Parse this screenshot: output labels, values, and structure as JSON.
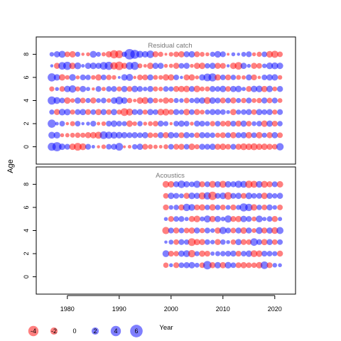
{
  "chart_data": {
    "type": "scatter",
    "xlabel": "Year",
    "ylabel": "Age",
    "xlim": [
      1974,
      2024
    ],
    "x_ticks": [
      1980,
      1990,
      2000,
      2010,
      2020
    ],
    "y_ticks": [
      0,
      2,
      4,
      6,
      8
    ],
    "ylim": [
      -1.5,
      9.5
    ],
    "colors": {
      "positive": "#0000ff",
      "negative": "#ff0000",
      "frame": "#000000",
      "title": "#777777"
    },
    "legend": {
      "placement": "bottom-left",
      "items": [
        {
          "label": "-4",
          "value": -4
        },
        {
          "label": "-2",
          "value": -2
        },
        {
          "label": "0",
          "value": 0
        },
        {
          "label": "2",
          "value": 2
        },
        {
          "label": "4",
          "value": 4
        },
        {
          "label": "6",
          "value": 6
        }
      ]
    },
    "panels": [
      {
        "title": "Residual catch",
        "years": [
          1977,
          2021
        ],
        "ages": [
          0,
          8
        ],
        "residuals_by_age": {
          "8": [
            0.8,
            1.5,
            1.9,
            -1.2,
            -1.6,
            1.0,
            -0.4,
            -0.6,
            1.8,
            0.9,
            -0.7,
            -1.5,
            -2.6,
            -2.4,
            1.1,
            4.2,
            3.1,
            1.9,
            1.6,
            2.2,
            -1.4,
            -1.0,
            -0.3,
            -0.8,
            -1.2,
            -1.5,
            1.4,
            1.6,
            -1.3,
            -0.9,
            -0.6,
            1.0,
            1.7,
            1.3,
            -0.3,
            0.6,
            0.4,
            0.9,
            1.3,
            -0.6,
            -1.0,
            1.2,
            -1.7,
            -2.0,
            -1.2
          ],
          "7": [
            0.4,
            -1.4,
            2.2,
            2.6,
            -1.6,
            1.8,
            0.5,
            1.5,
            1.7,
            1.4,
            2.3,
            2.6,
            -2.1,
            -2.8,
            -1.4,
            2.2,
            2.5,
            -0.9,
            -0.5,
            -1.6,
            1.5,
            1.4,
            -0.6,
            -0.7,
            -1.4,
            1.2,
            1.4,
            -0.6,
            -1.5,
            -1.6,
            1.1,
            1.5,
            -1.4,
            -1.3,
            0.4,
            -1.6,
            -2.2,
            1.5,
            0.6,
            -1.4,
            -1.2,
            0.8,
            1.7,
            1.8,
            1.6
          ],
          "6": [
            2.6,
            1.6,
            -1.6,
            -0.8,
            1.7,
            -0.6,
            1.3,
            1.1,
            -0.8,
            -1.5,
            1.2,
            -1.1,
            -0.8,
            0.3,
            1.6,
            1.9,
            -0.4,
            -1.2,
            -1.3,
            1.4,
            -0.9,
            -0.8,
            -1.6,
            -1.5,
            1.2,
            0.4,
            -1.4,
            -1.5,
            -0.6,
            1.5,
            2.3,
            2.5,
            -1.5,
            1.2,
            -1.3,
            1.1,
            -0.9,
            -0.7,
            1.4,
            -1.3,
            -0.4,
            1.2,
            1.5,
            1.6,
            -0.8
          ],
          "5": [
            -1.0,
            0.6,
            -1.2,
            1.6,
            2.1,
            -1.0,
            1.5,
            0.7,
            -0.4,
            1.3,
            -0.7,
            1.2,
            1.3,
            -1.0,
            1.5,
            -1.2,
            1.6,
            1.3,
            0.8,
            1.4,
            -1.0,
            -0.8,
            1.2,
            1.0,
            -1.4,
            -1.5,
            -1.6,
            1.3,
            -1.7,
            -0.9,
            -1.0,
            1.4,
            1.2,
            1.6,
            -1.2,
            1.5,
            1.6,
            0.7,
            -1.3,
            1.6,
            1.7,
            -1.5,
            1.6,
            -0.9,
            1.4
          ],
          "4": [
            2.6,
            1.8,
            1.2,
            -1.6,
            -0.8,
            1.5,
            -1.2,
            1.0,
            -1.4,
            0.9,
            1.2,
            -0.8,
            1.6,
            2.3,
            1.6,
            -1.1,
            -0.5,
            -1.6,
            -1.8,
            1.4,
            -1.1,
            -0.7,
            -1.5,
            -1.0,
            1.0,
            0.8,
            -1.2,
            1.0,
            1.4,
            1.5,
            -1.8,
            1.6,
            1.3,
            -1.3,
            1.2,
            -1.4,
            1.0,
            -1.1,
            1.3,
            -0.9,
            -1.1,
            1.4,
            -1.2,
            1.3,
            -0.9
          ],
          "3": [
            1.0,
            -1.4,
            1.7,
            1.6,
            -1.0,
            1.3,
            1.5,
            -1.3,
            1.2,
            -1.5,
            1.4,
            -1.2,
            1.5,
            -1.0,
            -2.3,
            -1.9,
            1.3,
            1.4,
            -1.0,
            1.5,
            1.2,
            -1.7,
            -1.8,
            -1.2,
            1.4,
            1.0,
            -1.6,
            1.2,
            -1.4,
            -0.9,
            1.0,
            1.4,
            1.3,
            1.2,
            0.6,
            -1.5,
            1.0,
            1.2,
            1.4,
            -1.2,
            1.5,
            1.2,
            1.4,
            -1.0,
            1.3
          ],
          "2": [
            2.6,
            0.5,
            1.2,
            -0.4,
            -1.0,
            1.2,
            0.4,
            0.6,
            1.3,
            -0.5,
            -0.8,
            1.3,
            1.6,
            1.2,
            1.0,
            -1.6,
            -0.8,
            1.1,
            -0.6,
            -0.9,
            -1.2,
            1.4,
            1.0,
            -0.4,
            1.2,
            1.5,
            1.2,
            -0.6,
            1.4,
            1.3,
            1.0,
            -1.1,
            1.2,
            -1.2,
            -1.4,
            1.3,
            -1.4,
            1.5,
            -1.2,
            0.9,
            1.2,
            -1.6,
            1.5,
            -1.3,
            1.1
          ],
          "1": [
            1.8,
            1.7,
            -0.6,
            -0.7,
            -0.9,
            -1.1,
            -1.0,
            -1.4,
            -1.6,
            -1.9,
            2.3,
            2.0,
            1.8,
            1.7,
            1.5,
            1.3,
            1.4,
            1.2,
            1.5,
            -1.2,
            -1.0,
            1.4,
            -1.4,
            1.6,
            1.2,
            -1.3,
            1.5,
            1.0,
            -1.2,
            1.4,
            1.3,
            1.1,
            -1.0,
            -1.3,
            1.2,
            -1.5,
            1.3,
            1.5,
            -1.6,
            1.2,
            -1.6,
            1.0,
            -1.4,
            1.5,
            -1.2
          ],
          "0": [
            2.5,
            3.2,
            1.6,
            1.3,
            -1.6,
            -2.3,
            -1.8,
            1.3,
            0.5,
            -0.4,
            -0.8,
            1.2,
            1.4,
            2.3,
            -0.3,
            -0.5,
            1.1,
            1.5,
            -1.3,
            -0.9,
            -0.7,
            -0.5,
            -0.9,
            1.2,
            -1.3,
            -1.4,
            1.2,
            -1.6,
            -1.0,
            1.4,
            1.3,
            1.5,
            -1.4,
            -1.6,
            -1.2,
            1.3,
            -1.4,
            -1.8,
            -1.6,
            -1.9,
            -1.5,
            -1.6,
            -1.4,
            -1.2,
            2.1
          ]
        }
      },
      {
        "title": "Acoustics",
        "years": [
          1999,
          2021
        ],
        "ages": [
          1,
          8
        ],
        "residuals_by_age": {
          "8": [
            -1.7,
            -1.6,
            1.4,
            2.2,
            1.5,
            1.2,
            2.0,
            -1.4,
            1.3,
            -1.8,
            1.5,
            -1.9,
            1.6,
            1.4,
            2.0,
            1.8,
            -2.1,
            -1.9,
            1.7,
            -1.8,
            -1.4,
            1.3,
            -1.6
          ],
          "7": [
            -1.2,
            1.6,
            1.3,
            0.9,
            -1.4,
            1.7,
            1.4,
            -1.9,
            2.1,
            -2.7,
            1.3,
            1.7,
            -2.2,
            1.3,
            1.5,
            -1.3,
            1.7,
            1.2,
            1.3,
            -1.6,
            1.4,
            1.1,
            1.4
          ],
          "6": [
            -1.3,
            0.8,
            1.1,
            -1.4,
            2.1,
            1.7,
            -1.3,
            -1.5,
            1.1,
            -1.6,
            1.1,
            -1.2,
            0.9,
            -1.3,
            1.0,
            2.5,
            2.1,
            -1.6,
            1.1,
            -1.2,
            1.4,
            0.8,
            -1.2
          ],
          "5": [
            0.6,
            -1.3,
            1.2,
            1.3,
            0.7,
            -1.4,
            -1.7,
            0.9,
            1.9,
            -1.5,
            1.5,
            0.8,
            2.0,
            -1.3,
            -1.5,
            1.6,
            1.3,
            -0.9,
            1.8,
            0.7,
            1.2,
            -1.4,
            0.7
          ],
          "4": [
            -2.0,
            1.3,
            -1.4,
            1.2,
            -1.2,
            -1.5,
            1.4,
            -1.1,
            1.3,
            0.8,
            -1.5,
            2.0,
            1.3,
            -1.2,
            1.4,
            -1.6,
            1.4,
            -0.9,
            1.8,
            -1.4,
            1.5,
            -1.7,
            1.9
          ],
          "3": [
            0.4,
            0.9,
            -1.2,
            1.3,
            1.1,
            -2.3,
            -1.5,
            -1.4,
            1.2,
            0.8,
            -1.4,
            1.1,
            0.6,
            -1.1,
            1.5,
            -1.3,
            -1.2,
            2.2,
            1.3,
            -1.5,
            1.4,
            -1.2,
            1.2
          ],
          "2": [
            1.8,
            -1.3,
            -1.1,
            1.5,
            1.8,
            -2.1,
            1.0,
            -1.5,
            -1.3,
            0.7,
            1.0,
            1.1,
            1.3,
            1.4,
            -1.3,
            1.2,
            1.6,
            -1.8,
            -1.6,
            1.3,
            1.2,
            1.0,
            -1.4
          ],
          "1": [
            -1.1,
            0.6,
            -1.3,
            1.2,
            1.4,
            1.6,
            0.9,
            -1.2,
            2.7,
            -1.4,
            1.6,
            -1.5,
            1.7,
            1.2,
            -1.3,
            -1.5,
            -1.2,
            -1.1,
            -1.6,
            2.2,
            -1.3,
            0.8,
            0.6
          ]
        }
      }
    ]
  }
}
